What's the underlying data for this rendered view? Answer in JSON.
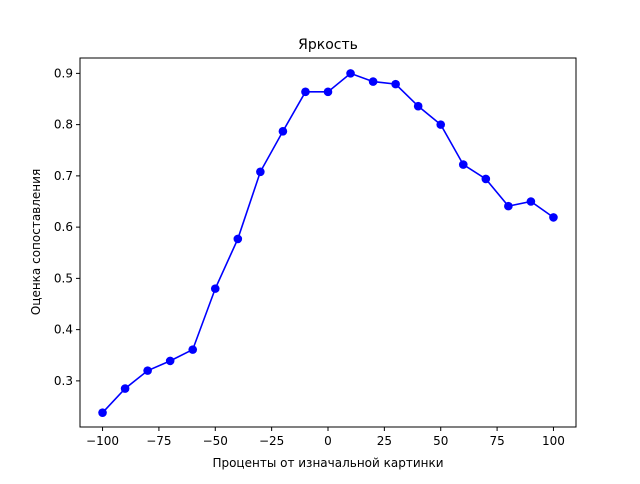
{
  "chart_data": {
    "type": "line",
    "title": "Яркость",
    "xlabel": "Проценты от изначальной картинки",
    "ylabel": "Оценка сопоставления",
    "xlim": [
      -110,
      110
    ],
    "ylim": [
      0.21,
      0.93
    ],
    "xticks": [
      -100,
      -75,
      -50,
      -25,
      0,
      25,
      50,
      75,
      100
    ],
    "xtick_labels": [
      "−100",
      "−75",
      "−50",
      "−25",
      "0",
      "25",
      "50",
      "75",
      "100"
    ],
    "yticks": [
      0.3,
      0.4,
      0.5,
      0.6,
      0.7,
      0.8,
      0.9
    ],
    "ytick_labels": [
      "0.3",
      "0.4",
      "0.5",
      "0.6",
      "0.7",
      "0.8",
      "0.9"
    ],
    "grid": false,
    "color": "#0000ff",
    "series": [
      {
        "x": [
          -100,
          -90,
          -80,
          -70,
          -60,
          -50,
          -40,
          -30,
          -20,
          -10,
          0,
          10,
          20,
          30,
          40,
          50,
          60,
          70,
          80,
          90,
          100
        ],
        "y": [
          0.238,
          0.285,
          0.32,
          0.339,
          0.361,
          0.48,
          0.577,
          0.708,
          0.787,
          0.864,
          0.864,
          0.9,
          0.884,
          0.879,
          0.836,
          0.8,
          0.722,
          0.694,
          0.641,
          0.65,
          0.619
        ]
      }
    ]
  }
}
